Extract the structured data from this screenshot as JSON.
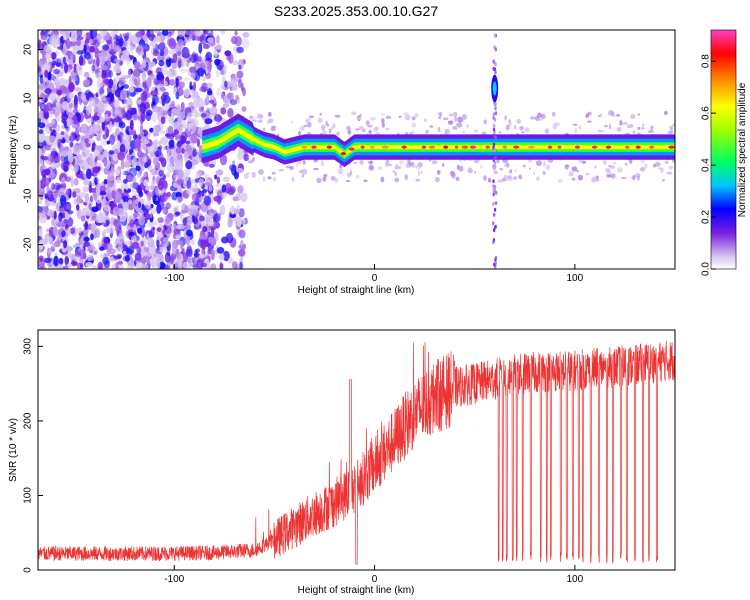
{
  "figure": {
    "title": "S233.2025.353.00.10.G27"
  },
  "chart_data": [
    {
      "type": "heatmap",
      "xlabel": "Height of straight line (km)",
      "ylabel": "Frequency (Hz)",
      "xlim": [
        -168,
        150
      ],
      "ylim": [
        -25,
        24
      ],
      "xticks": [
        -100,
        0,
        100
      ],
      "yticks": [
        -20,
        -10,
        0,
        10,
        20
      ],
      "ridge": {
        "description_points_x": [
          -86,
          -78,
          -72,
          -68,
          -64,
          -60,
          -55,
          -50,
          -45,
          -40,
          -35,
          -30,
          -20,
          -15,
          -10,
          0,
          10,
          20,
          40,
          60,
          80,
          100,
          120,
          150
        ],
        "description_points_y": [
          0,
          1,
          2.5,
          3.5,
          2.5,
          1.5,
          0.5,
          0,
          -1,
          -0.5,
          0,
          0,
          0,
          -1.5,
          0,
          0,
          0,
          0,
          0,
          0,
          0,
          0,
          0,
          0
        ]
      },
      "features": [
        {
          "x": 60,
          "y": 12,
          "label": ""
        }
      ],
      "colorbar": {
        "label": "Normalized spectral amplitude",
        "range": [
          0.0,
          0.92
        ],
        "ticks": [
          0.0,
          0.2,
          0.4,
          0.6,
          0.8
        ],
        "tick_labels": [
          "0.0",
          "0.2",
          "0.4",
          "0.6",
          "0.8"
        ]
      }
    },
    {
      "type": "line",
      "xlabel": "Height of straight line (km)",
      "ylabel": "SNR (10 * v/v)",
      "xlim": [
        -168,
        150
      ],
      "ylim": [
        0,
        322
      ],
      "xticks": [
        -100,
        0,
        100
      ],
      "yticks": [
        0,
        100,
        200,
        300
      ],
      "series": [
        {
          "color": "#ee3333",
          "trend_x": [
            -168,
            -120,
            -80,
            -60,
            -50,
            -40,
            -30,
            -20,
            -10,
            0,
            10,
            20,
            30,
            40,
            50,
            60,
            70,
            80,
            100,
            120,
            150
          ],
          "trend_y": [
            22,
            22,
            23,
            27,
            40,
            58,
            75,
            90,
            110,
            140,
            175,
            210,
            232,
            245,
            250,
            256,
            262,
            265,
            268,
            272,
            282
          ],
          "dropout_x": [
            62,
            64,
            66,
            69,
            71,
            74,
            78,
            83,
            86,
            88,
            93,
            96,
            99,
            102,
            104,
            108,
            112,
            116,
            119,
            123,
            126,
            130,
            134,
            137,
            141
          ],
          "dropout_min": 10
        }
      ]
    }
  ]
}
